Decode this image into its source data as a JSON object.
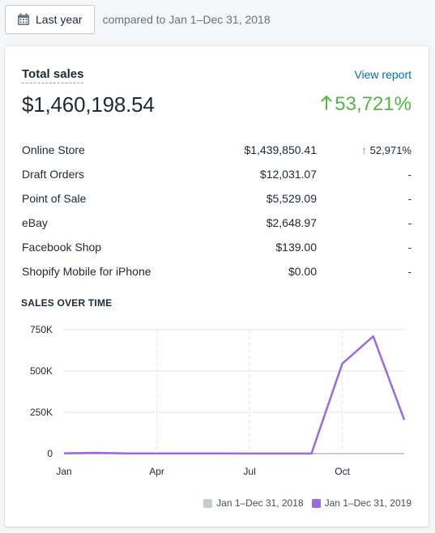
{
  "date_range": {
    "label": "Last year",
    "compare_text": "compared to Jan 1–Dec 31, 2018",
    "icon": "calendar-icon"
  },
  "card": {
    "title": "Total sales",
    "link": "View report",
    "total": "$1,460,198.54",
    "change": "53,721%",
    "change_color": "#50b83c",
    "rows": [
      {
        "name": "Online Store",
        "amount": "$1,439,850.41",
        "change": "52,971%",
        "up": true
      },
      {
        "name": "Draft Orders",
        "amount": "$12,031.07",
        "change": "-",
        "up": false
      },
      {
        "name": "Point of Sale",
        "amount": "$5,529.09",
        "change": "-",
        "up": false
      },
      {
        "name": "eBay",
        "amount": "$2,648.97",
        "change": "-",
        "up": false
      },
      {
        "name": "Facebook Shop",
        "amount": "$139.00",
        "change": "-",
        "up": false
      },
      {
        "name": "Shopify Mobile for iPhone",
        "amount": "$0.00",
        "change": "-",
        "up": false
      }
    ]
  },
  "chart_data": {
    "title": "SALES OVER TIME",
    "type": "line",
    "x_ticks": [
      "Jan",
      "Apr",
      "Jul",
      "Oct"
    ],
    "y_ticks": [
      "0",
      "250K",
      "500K",
      "750K"
    ],
    "ylim": [
      0,
      750000
    ],
    "x": [
      1,
      2,
      3,
      4,
      5,
      6,
      7,
      8,
      9,
      10,
      11,
      12
    ],
    "series": [
      {
        "name": "Jan 1–Dec 31, 2018",
        "color": "#c4cdd5",
        "values": [
          0,
          0,
          0,
          0,
          0,
          0,
          0,
          0,
          0,
          0,
          0,
          0
        ]
      },
      {
        "name": "Jan 1–Dec 31, 2019",
        "color": "#9c6ade",
        "values": [
          2000,
          5000,
          1500,
          1500,
          1000,
          800,
          700,
          600,
          500,
          545000,
          710000,
          205000
        ]
      }
    ]
  }
}
